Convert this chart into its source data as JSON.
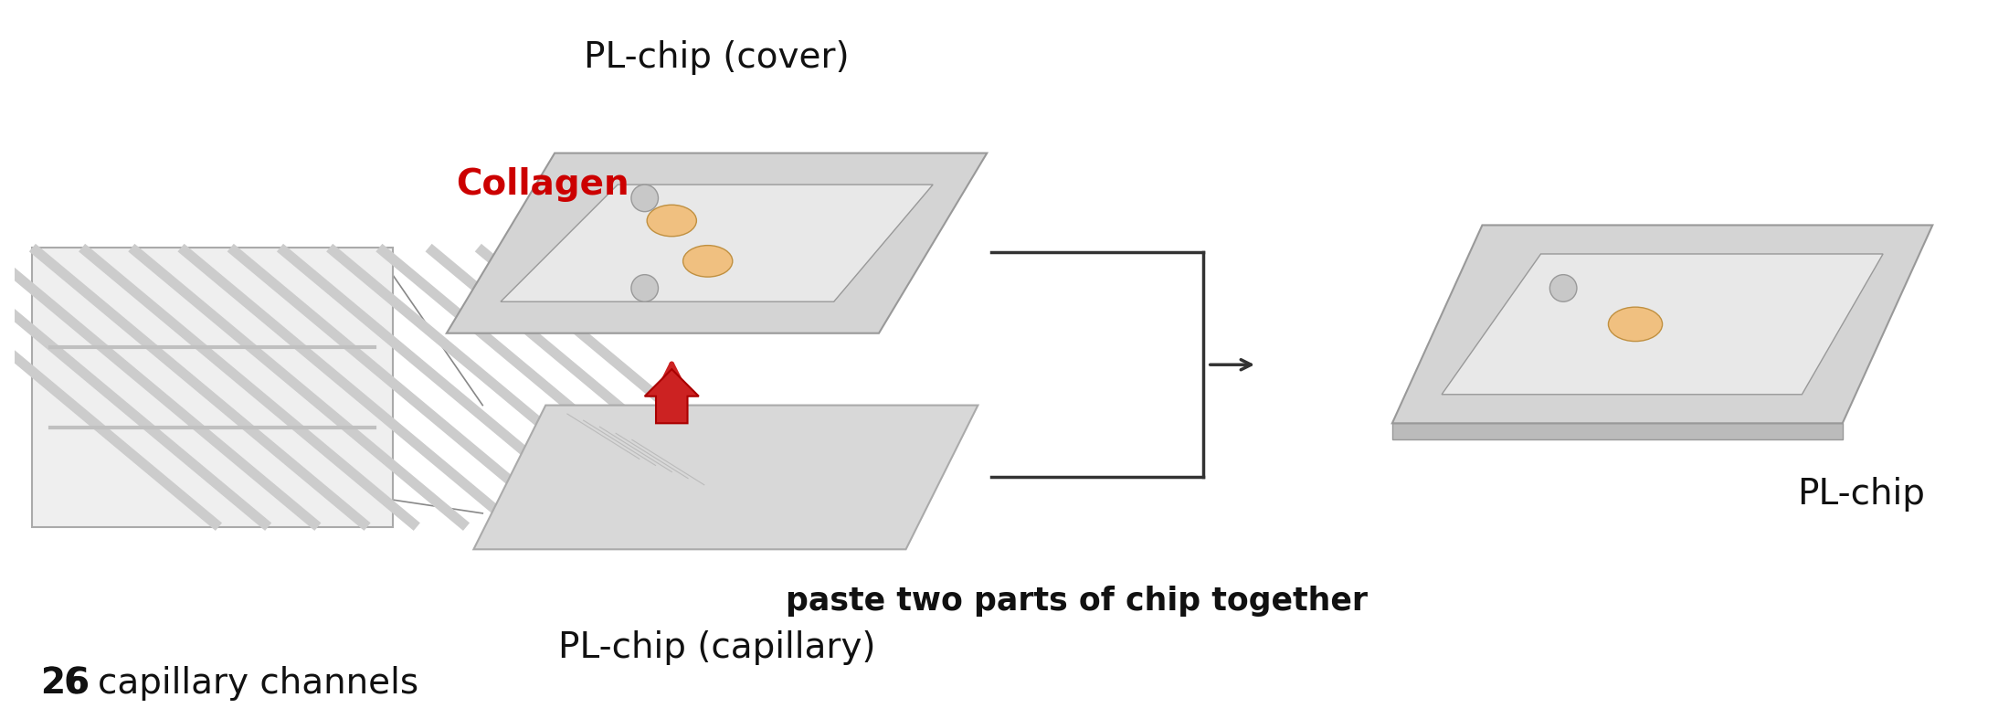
{
  "bg_color": "#ffffff",
  "chip_color": "#d8d8d8",
  "chip_edge_color": "#aaaaaa",
  "chip_inner_color": "#e8e8e8",
  "collagen_color": "#f0c080",
  "collagen_edge": "#c09040",
  "arrow_red": "#cc2222",
  "arrow_black": "#222222",
  "text_collagen_color": "#cc0000",
  "text_black": "#111111",
  "text_bold_color": "#111111",
  "labels": {
    "cover": "PL-chip (cover)",
    "capillary": "PL-chip (capillary)",
    "pl_chip": "PL-chip",
    "paste": "paste two parts of chip together",
    "channels": "26 capillary channels",
    "collagen": "Collagen"
  },
  "figsize": [
    21.99,
    7.75
  ]
}
